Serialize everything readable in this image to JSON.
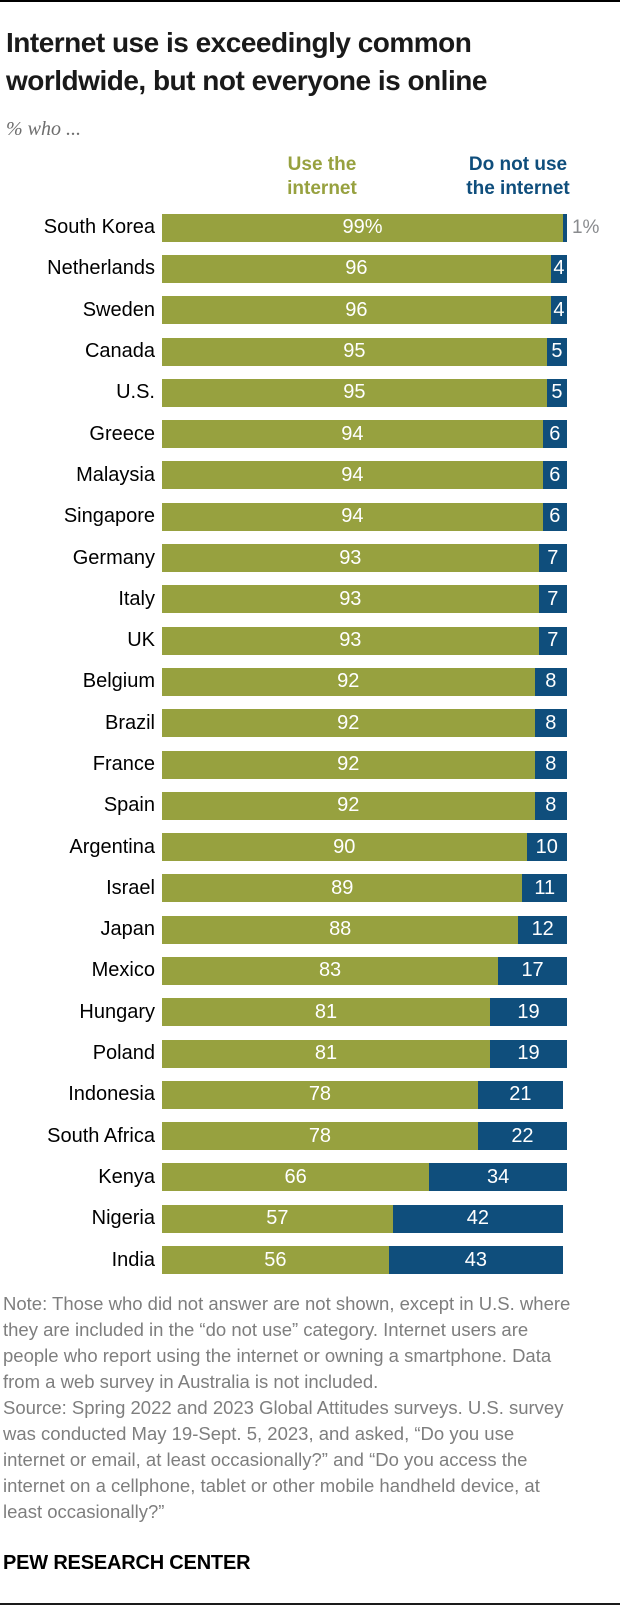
{
  "title": {
    "line1": "Internet use is exceedingly common",
    "line2": "worldwide, but not everyone is online"
  },
  "subtitle": "% who ...",
  "legend": {
    "use": {
      "line1": "Use the",
      "line2": "internet"
    },
    "not_use": {
      "line1": "Do not use",
      "line2": "the internet"
    }
  },
  "colors": {
    "use": "#97A13F",
    "not_use": "#0F4E7C",
    "in_bar_label": "#FFFFFF",
    "outside_label": "#898B8E",
    "title": "#1A1A1A",
    "subtitle": "#6E6E6E",
    "notes": "#7E7E7E",
    "rule": "#000000"
  },
  "chart_data": {
    "type": "bar",
    "variant": "horizontal-stacked",
    "unit": "%",
    "xlim": [
      0,
      100
    ],
    "grid": false,
    "legend_position": "top",
    "categories": [
      "South Korea",
      "Netherlands",
      "Sweden",
      "Canada",
      "U.S.",
      "Greece",
      "Malaysia",
      "Singapore",
      "Germany",
      "Italy",
      "UK",
      "Belgium",
      "Brazil",
      "France",
      "Spain",
      "Argentina",
      "Israel",
      "Japan",
      "Mexico",
      "Hungary",
      "Poland",
      "Indonesia",
      "South Africa",
      "Kenya",
      "Nigeria",
      "India"
    ],
    "series": [
      {
        "name": "Use the internet",
        "color": "#97A13F",
        "values": [
          99,
          96,
          96,
          95,
          95,
          94,
          94,
          94,
          93,
          93,
          93,
          92,
          92,
          92,
          92,
          90,
          89,
          88,
          83,
          81,
          81,
          78,
          78,
          66,
          57,
          56
        ]
      },
      {
        "name": "Do not use the internet",
        "color": "#0F4E7C",
        "values": [
          1,
          4,
          4,
          5,
          5,
          6,
          6,
          6,
          7,
          7,
          7,
          8,
          8,
          8,
          8,
          10,
          11,
          12,
          17,
          19,
          19,
          21,
          22,
          34,
          42,
          43
        ]
      }
    ],
    "value_label_rules": {
      "percent_suffix_on_first_row": true,
      "label_outside_when_below": 3
    }
  },
  "notes": {
    "note_lines": [
      "Note: Those who did not answer are not shown, except in U.S. where",
      "they are included in the “do not use” category. Internet users are",
      "people who report using the internet or owning a smartphone. Data",
      "from a web survey in Australia is not included."
    ],
    "source_lines": [
      "Source: Spring 2022 and 2023 Global Attitudes surveys. U.S. survey",
      "was conducted May 19-Sept. 5, 2023, and asked, “Do you use",
      "internet or email, at least occasionally?” and “Do you access the",
      "internet on a cellphone, tablet or other mobile handheld device, at",
      "least occasionally?”"
    ]
  },
  "footer": {
    "brand": "PEW RESEARCH CENTER"
  }
}
